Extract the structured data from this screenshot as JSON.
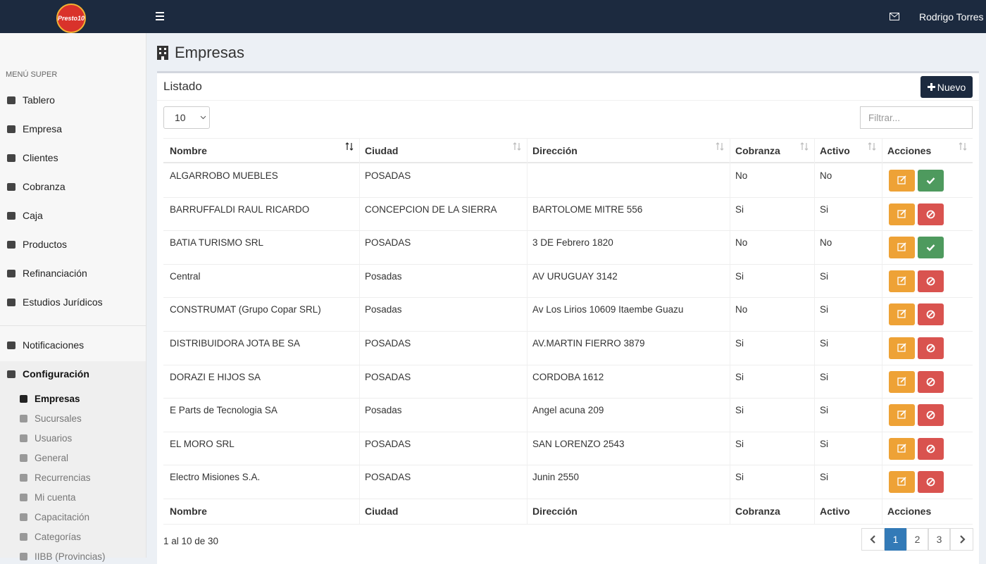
{
  "header": {
    "logo": "Presto10",
    "user": "Rodrigo Torres"
  },
  "sidebar": {
    "section": "MENÚ SUPER",
    "items": [
      "Tablero",
      "Empresa",
      "Clientes",
      "Cobranza",
      "Caja",
      "Productos",
      "Refinanciación",
      "Estudios Jurídicos"
    ],
    "extra": [
      "Notificaciones",
      "Configuración"
    ],
    "subitems": [
      "Empresas",
      "Sucursales",
      "Usuarios",
      "General",
      "Recurrencias",
      "Mi cuenta",
      "Capacitación",
      "Categorías",
      "IIBB (Provincias)"
    ]
  },
  "page": {
    "title": "Empresas"
  },
  "card": {
    "title": "Listado",
    "new_button": "Nuevo",
    "page_size": "10",
    "filter_placeholder": "Filtrar...",
    "columns": [
      "Nombre",
      "Ciudad",
      "Dirección",
      "Cobranza",
      "Activo",
      "Acciones"
    ],
    "rows": [
      [
        "ALGARROBO MUEBLES",
        "POSADAS",
        null,
        "No",
        "No"
      ],
      [
        "BARRUFFALDI RAUL RICARDO",
        "CONCEPCION DE LA SIERRA",
        "BARTOLOME MITRE 556",
        "Si",
        "Si"
      ],
      [
        "BATIA TURISMO SRL",
        "POSADAS",
        "3 DE Febrero 1820",
        "No",
        "No"
      ],
      [
        "Central",
        "Posadas",
        "AV URUGUAY 3142",
        "Si",
        "Si"
      ],
      [
        "CONSTRUMAT (Grupo Copar SRL)",
        "Posadas",
        "Av Los Lirios 10609 Itaembe Guazu",
        "No",
        "Si"
      ],
      [
        "DISTRIBUIDORA JOTA BE SA",
        "POSADAS",
        "AV.MARTIN FIERRO 3879",
        "Si",
        "Si"
      ],
      [
        "DORAZI E HIJOS SA",
        "POSADAS",
        "CORDOBA 1612",
        "Si",
        "Si"
      ],
      [
        "E Parts de Tecnologia SA",
        "Posadas",
        "Angel acuna 209",
        "Si",
        "Si"
      ],
      [
        "EL MORO SRL",
        "POSADAS",
        "SAN LORENZO 2543",
        "Si",
        "Si"
      ],
      [
        "Electro Misiones S.A.",
        "POSADAS",
        "Junin 2550",
        "Si",
        "Si"
      ]
    ],
    "info": "1 al 10 de 30",
    "pages": [
      "1",
      "2",
      "3"
    ]
  }
}
